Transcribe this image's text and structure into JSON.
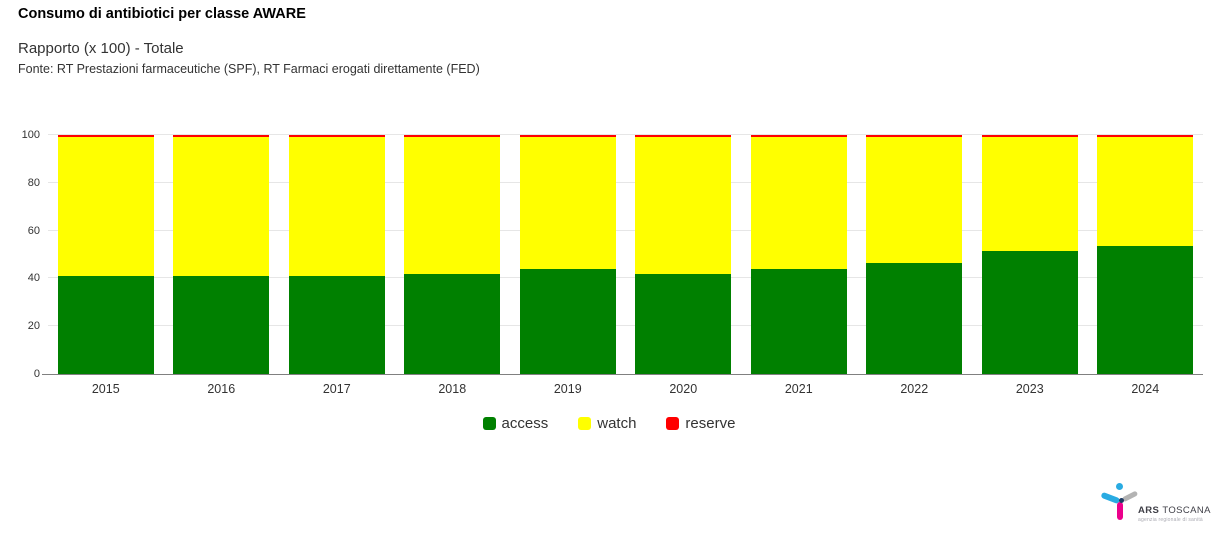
{
  "header": {
    "title": "Consumo di antibiotici per classe AWARE",
    "subtitle": "Rapporto (x 100) - Totale",
    "source": "Fonte: RT Prestazioni farmaceutiche (SPF), RT Farmaci erogati direttamente (FED)"
  },
  "chart_data": {
    "type": "bar",
    "stacked": true,
    "title": "Consumo di antibiotici per classe AWARE",
    "subtitle": "Rapporto (x 100) - Totale",
    "categories": [
      "2015",
      "2016",
      "2017",
      "2018",
      "2019",
      "2020",
      "2021",
      "2022",
      "2023",
      "2024"
    ],
    "series": [
      {
        "name": "access",
        "color": "#008000",
        "values": [
          41.0,
          41.0,
          41.0,
          42.0,
          44.0,
          42.0,
          44.0,
          46.5,
          51.5,
          53.5
        ]
      },
      {
        "name": "watch",
        "color": "#ffff00",
        "values": [
          58.3,
          58.3,
          58.3,
          57.3,
          55.3,
          57.3,
          55.3,
          52.8,
          47.8,
          45.8
        ]
      },
      {
        "name": "reserve",
        "color": "#ff0000",
        "values": [
          0.7,
          0.7,
          0.7,
          0.7,
          0.7,
          0.7,
          0.7,
          0.7,
          0.7,
          0.7
        ]
      }
    ],
    "xlabel": "",
    "ylabel": "",
    "ylim": [
      0,
      100
    ],
    "yticks": [
      0,
      20,
      40,
      60,
      80,
      100
    ],
    "grid": true,
    "gridline_color": "#e6e6e6",
    "axis_line_color": "#808080",
    "legend_position": "bottom-center"
  },
  "legend": {
    "items": [
      {
        "label": "access",
        "color": "#008000"
      },
      {
        "label": "watch",
        "color": "#ffff00"
      },
      {
        "label": "reserve",
        "color": "#ff0000"
      }
    ]
  },
  "logo": {
    "brand_bold": "ARS",
    "brand_light": "TOSCANA",
    "tagline": "agenzia regionale di sanità"
  }
}
